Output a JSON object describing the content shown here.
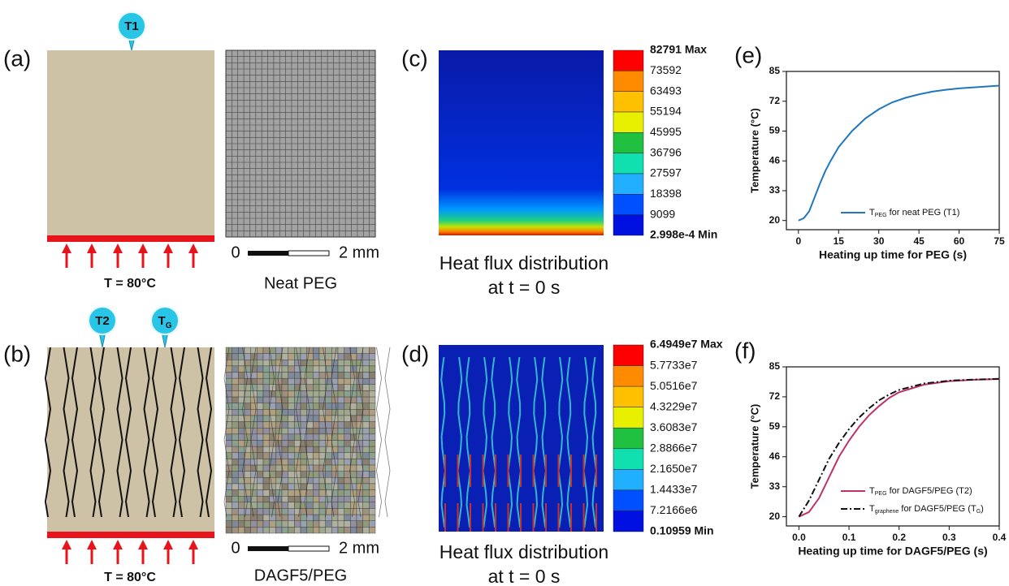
{
  "figure": {
    "panel_a": {
      "label": "(a)",
      "probe": "T1",
      "condition": "T = 80°C"
    },
    "mesh_a": {
      "scale_start": "0",
      "scale_end": "2 mm",
      "caption": "Neat PEG"
    },
    "panel_c": {
      "label": "(c)",
      "colorbar": [
        "82791 Max",
        "73592",
        "63493",
        "55194",
        "45995",
        "36796",
        "27597",
        "18398",
        "9099",
        "2.998e-4 Min"
      ],
      "caption": [
        "Heat flux distribution",
        "at t = 0 s"
      ]
    },
    "panel_b": {
      "label": "(b)",
      "probes": [
        [
          "T2"
        ],
        [
          "T",
          "G"
        ]
      ],
      "condition": "T = 80°C"
    },
    "mesh_b": {
      "scale_start": "0",
      "scale_end": "2 mm",
      "caption": "DAGF5/PEG"
    },
    "panel_d": {
      "label": "(d)",
      "colorbar": [
        "6.4949e7 Max",
        "5.7733e7",
        "5.0516e7",
        "4.3229e7",
        "3.6083e7",
        "2.8866e7",
        "2.1650e7",
        "1.4433e7",
        "7.2166e6",
        "0.10959 Min"
      ],
      "caption": [
        "Heat flux distribution",
        "at t = 0 s"
      ]
    }
  },
  "chart_data": [
    {
      "type": "line",
      "panel_label": "(e)",
      "xlabel": "Heating up time for PEG (s)",
      "ylabel": "Temperature (°C)",
      "x": [
        0,
        2,
        4,
        6,
        8,
        10,
        12,
        15,
        20,
        25,
        30,
        35,
        40,
        45,
        50,
        55,
        60,
        65,
        70,
        75
      ],
      "xlim": [
        -4.5,
        75
      ],
      "xticks": [
        0,
        15,
        30,
        45,
        60,
        75
      ],
      "ylim": [
        16,
        85
      ],
      "yticks": [
        20,
        33,
        46,
        59,
        72,
        85
      ],
      "legend": "lower right",
      "series": [
        {
          "name": [
            "T",
            "PEG",
            " for neat PEG (T1)"
          ],
          "color": "#1f77c0",
          "values": [
            20,
            21,
            24,
            30,
            36,
            41.5,
            46,
            52,
            59,
            64.5,
            68.5,
            71.5,
            73.5,
            75,
            76.2,
            77,
            77.6,
            78,
            78.4,
            78.8
          ]
        }
      ]
    },
    {
      "type": "line",
      "panel_label": "(f)",
      "xlabel": "Heating up time for DAGF5/PEG (s)",
      "ylabel": "Temperature (°C)",
      "x": [
        0,
        0.02,
        0.04,
        0.06,
        0.08,
        0.1,
        0.12,
        0.14,
        0.16,
        0.18,
        0.2,
        0.25,
        0.3,
        0.35,
        0.4
      ],
      "xlim": [
        -0.025,
        0.4
      ],
      "xticks": [
        {
          "value": 0,
          "label": "0.0"
        },
        0.1,
        0.2,
        0.3,
        0.4
      ],
      "ylim": [
        16,
        85
      ],
      "yticks": [
        20,
        33,
        46,
        59,
        72,
        85
      ],
      "legend": "lower right",
      "series": [
        {
          "name": [
            "T",
            "PEG",
            " for DAGF5/PEG (T2)"
          ],
          "color": "#c0306a",
          "dash": "solid",
          "values": [
            20,
            22,
            28,
            37,
            46,
            53,
            59,
            64,
            68,
            71.5,
            74,
            77.3,
            78.8,
            79.4,
            79.7
          ]
        },
        {
          "name": [
            "T",
            "graphene",
            " for DAGF5/PEG (T",
            "G",
            ")"
          ],
          "color": "#111111",
          "dash": "dashdot",
          "values": [
            20,
            27,
            36,
            45,
            52,
            58,
            63,
            67,
            70.5,
            73,
            75,
            77.8,
            79,
            79.5,
            79.8
          ]
        }
      ]
    }
  ]
}
